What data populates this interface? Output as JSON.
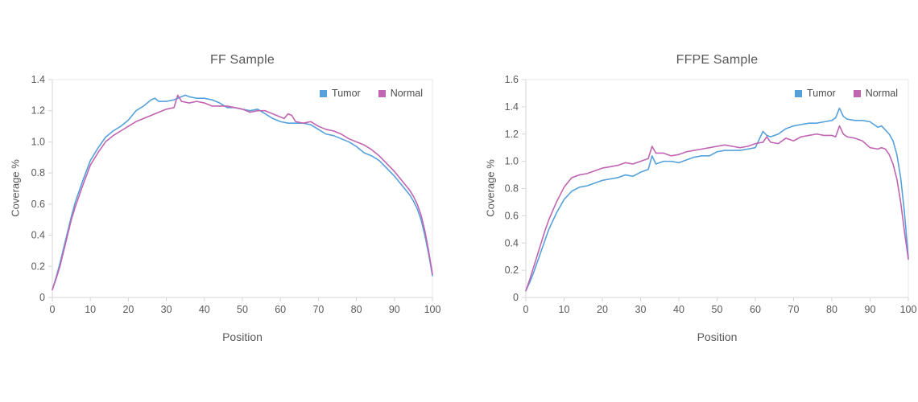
{
  "style": {
    "background": "#ffffff",
    "text_color": "#595959",
    "tick_label_color": "#595959",
    "legend_text_color": "#4d4d4d",
    "axis_line_color": "#d6d6d6",
    "border_color": "#e7e7e7",
    "tumor_color": "#55a1db",
    "normal_color": "#c164b1"
  },
  "chart_data": [
    {
      "type": "line",
      "title": "FF Sample",
      "xlabel": "Position",
      "ylabel": "Coverage %",
      "xlim": [
        0,
        100
      ],
      "ylim": [
        0,
        1.4
      ],
      "grid": false,
      "legend_position": "top-right-inside",
      "xtick_values": [
        0,
        10,
        20,
        30,
        40,
        50,
        60,
        70,
        80,
        90,
        100
      ],
      "xtick_labels": [
        "0",
        "10",
        "20",
        "30",
        "40",
        "50",
        "60",
        "70",
        "80",
        "90",
        "100"
      ],
      "ytick_values": [
        0,
        0.2,
        0.4,
        0.6,
        0.8,
        1.0,
        1.2,
        1.4
      ],
      "ytick_labels": [
        "0",
        "0.2",
        "0.4",
        "0.6",
        "0.8",
        "1.0",
        "1.2",
        "1.4"
      ],
      "series": [
        {
          "name": "Tumor",
          "color": "#55a1db",
          "points": [
            [
              0,
              0.05
            ],
            [
              1,
              0.13
            ],
            [
              2,
              0.22
            ],
            [
              3,
              0.32
            ],
            [
              4,
              0.42
            ],
            [
              5,
              0.52
            ],
            [
              6,
              0.61
            ],
            [
              8,
              0.75
            ],
            [
              10,
              0.88
            ],
            [
              12,
              0.96
            ],
            [
              14,
              1.03
            ],
            [
              16,
              1.07
            ],
            [
              18,
              1.1
            ],
            [
              20,
              1.14
            ],
            [
              22,
              1.2
            ],
            [
              24,
              1.23
            ],
            [
              26,
              1.27
            ],
            [
              27,
              1.28
            ],
            [
              28,
              1.26
            ],
            [
              30,
              1.26
            ],
            [
              32,
              1.27
            ],
            [
              33,
              1.28
            ],
            [
              34,
              1.29
            ],
            [
              35,
              1.3
            ],
            [
              36,
              1.29
            ],
            [
              38,
              1.28
            ],
            [
              40,
              1.28
            ],
            [
              42,
              1.27
            ],
            [
              44,
              1.25
            ],
            [
              46,
              1.22
            ],
            [
              48,
              1.22
            ],
            [
              50,
              1.21
            ],
            [
              52,
              1.2
            ],
            [
              54,
              1.21
            ],
            [
              56,
              1.18
            ],
            [
              58,
              1.15
            ],
            [
              60,
              1.13
            ],
            [
              62,
              1.12
            ],
            [
              64,
              1.12
            ],
            [
              66,
              1.12
            ],
            [
              68,
              1.11
            ],
            [
              70,
              1.08
            ],
            [
              72,
              1.05
            ],
            [
              74,
              1.04
            ],
            [
              76,
              1.02
            ],
            [
              78,
              1.0
            ],
            [
              80,
              0.97
            ],
            [
              82,
              0.93
            ],
            [
              84,
              0.91
            ],
            [
              86,
              0.88
            ],
            [
              88,
              0.83
            ],
            [
              90,
              0.78
            ],
            [
              92,
              0.72
            ],
            [
              94,
              0.66
            ],
            [
              95,
              0.62
            ],
            [
              96,
              0.57
            ],
            [
              97,
              0.5
            ],
            [
              98,
              0.4
            ],
            [
              99,
              0.28
            ],
            [
              100,
              0.14
            ]
          ]
        },
        {
          "name": "Normal",
          "color": "#c164b1",
          "points": [
            [
              0,
              0.05
            ],
            [
              1,
              0.12
            ],
            [
              2,
              0.2
            ],
            [
              3,
              0.3
            ],
            [
              4,
              0.4
            ],
            [
              5,
              0.5
            ],
            [
              6,
              0.58
            ],
            [
              8,
              0.72
            ],
            [
              10,
              0.85
            ],
            [
              12,
              0.93
            ],
            [
              14,
              1.0
            ],
            [
              16,
              1.04
            ],
            [
              18,
              1.07
            ],
            [
              20,
              1.1
            ],
            [
              22,
              1.13
            ],
            [
              24,
              1.15
            ],
            [
              26,
              1.17
            ],
            [
              28,
              1.19
            ],
            [
              30,
              1.21
            ],
            [
              32,
              1.22
            ],
            [
              33,
              1.3
            ],
            [
              34,
              1.26
            ],
            [
              36,
              1.25
            ],
            [
              38,
              1.26
            ],
            [
              40,
              1.25
            ],
            [
              42,
              1.23
            ],
            [
              44,
              1.23
            ],
            [
              46,
              1.23
            ],
            [
              48,
              1.22
            ],
            [
              50,
              1.21
            ],
            [
              52,
              1.19
            ],
            [
              54,
              1.2
            ],
            [
              56,
              1.2
            ],
            [
              58,
              1.18
            ],
            [
              60,
              1.16
            ],
            [
              61,
              1.15
            ],
            [
              62,
              1.18
            ],
            [
              63,
              1.17
            ],
            [
              64,
              1.13
            ],
            [
              66,
              1.12
            ],
            [
              68,
              1.13
            ],
            [
              70,
              1.1
            ],
            [
              72,
              1.08
            ],
            [
              74,
              1.07
            ],
            [
              76,
              1.05
            ],
            [
              78,
              1.02
            ],
            [
              80,
              1.0
            ],
            [
              81,
              0.99
            ],
            [
              82,
              0.98
            ],
            [
              84,
              0.95
            ],
            [
              86,
              0.91
            ],
            [
              88,
              0.86
            ],
            [
              90,
              0.81
            ],
            [
              92,
              0.75
            ],
            [
              94,
              0.69
            ],
            [
              95,
              0.65
            ],
            [
              96,
              0.6
            ],
            [
              97,
              0.53
            ],
            [
              98,
              0.43
            ],
            [
              99,
              0.3
            ],
            [
              100,
              0.15
            ]
          ]
        }
      ]
    },
    {
      "type": "line",
      "title": "FFPE Sample",
      "xlabel": "Position",
      "ylabel": "Coverage %",
      "xlim": [
        0,
        100
      ],
      "ylim": [
        0,
        1.6
      ],
      "grid": false,
      "legend_position": "top-right-inside",
      "xtick_values": [
        0,
        10,
        20,
        30,
        40,
        50,
        60,
        70,
        80,
        90,
        100
      ],
      "xtick_labels": [
        "0",
        "10",
        "20",
        "30",
        "40",
        "50",
        "60",
        "70",
        "80",
        "90",
        "100"
      ],
      "ytick_values": [
        0,
        0.2,
        0.4,
        0.6,
        0.8,
        1.0,
        1.2,
        1.4,
        1.6
      ],
      "ytick_labels": [
        "0",
        "0.2",
        "0.4",
        "0.6",
        "0.8",
        "1.0",
        "1.2",
        "1.4",
        "1.6"
      ],
      "series": [
        {
          "name": "Tumor",
          "color": "#55a1db",
          "points": [
            [
              0,
              0.05
            ],
            [
              1,
              0.11
            ],
            [
              2,
              0.18
            ],
            [
              3,
              0.26
            ],
            [
              4,
              0.34
            ],
            [
              5,
              0.42
            ],
            [
              6,
              0.5
            ],
            [
              8,
              0.62
            ],
            [
              10,
              0.72
            ],
            [
              12,
              0.78
            ],
            [
              14,
              0.81
            ],
            [
              16,
              0.82
            ],
            [
              18,
              0.84
            ],
            [
              20,
              0.86
            ],
            [
              22,
              0.87
            ],
            [
              24,
              0.88
            ],
            [
              26,
              0.9
            ],
            [
              28,
              0.89
            ],
            [
              30,
              0.92
            ],
            [
              32,
              0.94
            ],
            [
              33,
              1.04
            ],
            [
              34,
              0.98
            ],
            [
              36,
              1.0
            ],
            [
              38,
              1.0
            ],
            [
              40,
              0.99
            ],
            [
              42,
              1.01
            ],
            [
              44,
              1.03
            ],
            [
              46,
              1.04
            ],
            [
              48,
              1.04
            ],
            [
              50,
              1.07
            ],
            [
              52,
              1.08
            ],
            [
              54,
              1.08
            ],
            [
              56,
              1.08
            ],
            [
              58,
              1.09
            ],
            [
              60,
              1.1
            ],
            [
              62,
              1.22
            ],
            [
              63,
              1.19
            ],
            [
              64,
              1.18
            ],
            [
              66,
              1.2
            ],
            [
              68,
              1.24
            ],
            [
              70,
              1.26
            ],
            [
              72,
              1.27
            ],
            [
              74,
              1.28
            ],
            [
              76,
              1.28
            ],
            [
              78,
              1.29
            ],
            [
              80,
              1.3
            ],
            [
              81,
              1.32
            ],
            [
              82,
              1.39
            ],
            [
              83,
              1.33
            ],
            [
              84,
              1.31
            ],
            [
              86,
              1.3
            ],
            [
              88,
              1.3
            ],
            [
              90,
              1.29
            ],
            [
              92,
              1.25
            ],
            [
              93,
              1.26
            ],
            [
              94,
              1.23
            ],
            [
              95,
              1.2
            ],
            [
              96,
              1.15
            ],
            [
              97,
              1.05
            ],
            [
              98,
              0.88
            ],
            [
              99,
              0.62
            ],
            [
              100,
              0.29
            ]
          ]
        },
        {
          "name": "Normal",
          "color": "#c164b1",
          "points": [
            [
              0,
              0.05
            ],
            [
              1,
              0.13
            ],
            [
              2,
              0.22
            ],
            [
              3,
              0.31
            ],
            [
              4,
              0.4
            ],
            [
              5,
              0.49
            ],
            [
              6,
              0.57
            ],
            [
              8,
              0.7
            ],
            [
              10,
              0.81
            ],
            [
              12,
              0.88
            ],
            [
              14,
              0.9
            ],
            [
              16,
              0.91
            ],
            [
              18,
              0.93
            ],
            [
              20,
              0.95
            ],
            [
              22,
              0.96
            ],
            [
              24,
              0.97
            ],
            [
              26,
              0.99
            ],
            [
              28,
              0.98
            ],
            [
              30,
              1.0
            ],
            [
              32,
              1.02
            ],
            [
              33,
              1.11
            ],
            [
              34,
              1.06
            ],
            [
              36,
              1.06
            ],
            [
              38,
              1.04
            ],
            [
              40,
              1.05
            ],
            [
              42,
              1.07
            ],
            [
              44,
              1.08
            ],
            [
              46,
              1.09
            ],
            [
              48,
              1.1
            ],
            [
              50,
              1.11
            ],
            [
              52,
              1.12
            ],
            [
              54,
              1.11
            ],
            [
              56,
              1.1
            ],
            [
              58,
              1.11
            ],
            [
              60,
              1.13
            ],
            [
              62,
              1.14
            ],
            [
              63,
              1.18
            ],
            [
              64,
              1.14
            ],
            [
              66,
              1.13
            ],
            [
              68,
              1.17
            ],
            [
              70,
              1.15
            ],
            [
              72,
              1.18
            ],
            [
              74,
              1.19
            ],
            [
              76,
              1.2
            ],
            [
              78,
              1.19
            ],
            [
              80,
              1.19
            ],
            [
              81,
              1.18
            ],
            [
              82,
              1.26
            ],
            [
              83,
              1.2
            ],
            [
              84,
              1.18
            ],
            [
              86,
              1.17
            ],
            [
              88,
              1.15
            ],
            [
              90,
              1.1
            ],
            [
              92,
              1.09
            ],
            [
              93,
              1.1
            ],
            [
              94,
              1.09
            ],
            [
              95,
              1.05
            ],
            [
              96,
              0.98
            ],
            [
              97,
              0.87
            ],
            [
              98,
              0.7
            ],
            [
              99,
              0.48
            ],
            [
              100,
              0.28
            ]
          ]
        }
      ]
    }
  ]
}
